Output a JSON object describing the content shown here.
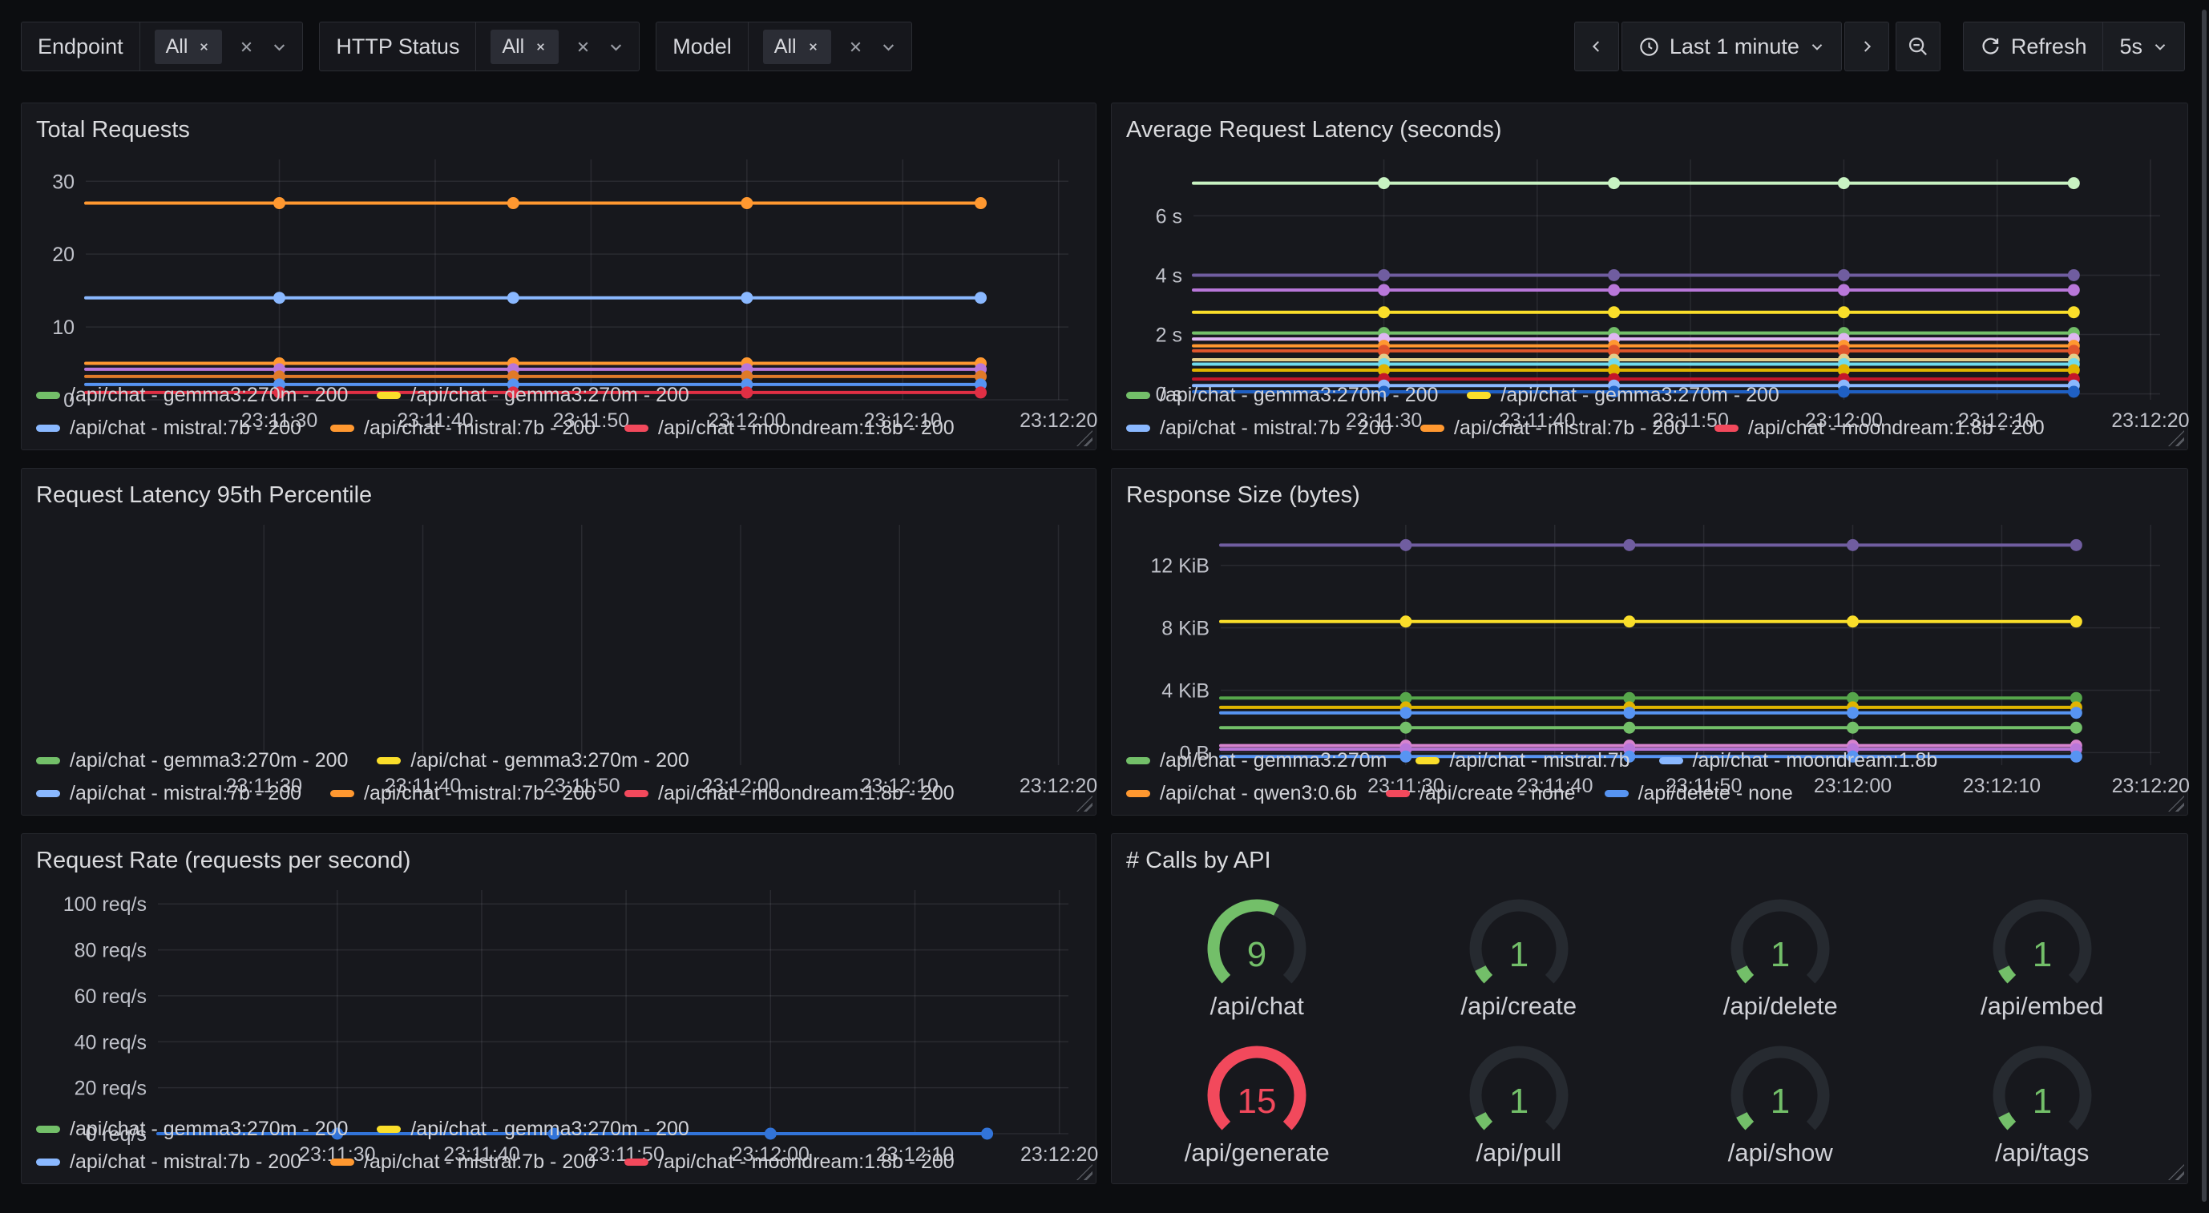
{
  "toolbar": {
    "filters": [
      {
        "label": "Endpoint",
        "selected": "All"
      },
      {
        "label": "HTTP Status",
        "selected": "All"
      },
      {
        "label": "Model",
        "selected": "All"
      }
    ],
    "time_range": "Last 1 minute",
    "refresh_label": "Refresh",
    "interval": "5s"
  },
  "colors": {
    "background": "#0c0d10",
    "panel": "#17181d",
    "grid": "rgba(204,204,220,0.10)",
    "tick_text": "#c0c2ca",
    "green": "#73BF69",
    "red": "#F2495C",
    "gauge_track": "#262a30"
  },
  "panels": [
    {
      "title": "Total Requests",
      "chart": 0,
      "legend": [
        [
          {
            "color": "#73BF69",
            "label": "/api/chat - gemma3:270m - 200"
          },
          {
            "color": "#FADE2A",
            "label": "/api/chat - gemma3:270m - 200"
          }
        ],
        [
          {
            "color": "#8AB8FF",
            "label": "/api/chat - mistral:7b - 200"
          },
          {
            "color": "#FF9830",
            "label": "/api/chat - mistral:7b - 200"
          },
          {
            "color": "#F2495C",
            "label": "/api/chat - moondream:1.8b - 200"
          }
        ]
      ]
    },
    {
      "title": "Average Request Latency (seconds)",
      "chart": 1,
      "legend": [
        [
          {
            "color": "#73BF69",
            "label": "/api/chat - gemma3:270m - 200"
          },
          {
            "color": "#FADE2A",
            "label": "/api/chat - gemma3:270m - 200"
          }
        ],
        [
          {
            "color": "#8AB8FF",
            "label": "/api/chat - mistral:7b - 200"
          },
          {
            "color": "#FF9830",
            "label": "/api/chat - mistral:7b - 200"
          },
          {
            "color": "#F2495C",
            "label": "/api/chat - moondream:1.8b - 200"
          }
        ]
      ]
    },
    {
      "title": "Request Latency 95th Percentile",
      "chart": 2,
      "legend": [
        [
          {
            "color": "#73BF69",
            "label": "/api/chat - gemma3:270m - 200"
          },
          {
            "color": "#FADE2A",
            "label": "/api/chat - gemma3:270m - 200"
          }
        ],
        [
          {
            "color": "#8AB8FF",
            "label": "/api/chat - mistral:7b - 200"
          },
          {
            "color": "#FF9830",
            "label": "/api/chat - mistral:7b - 200"
          },
          {
            "color": "#F2495C",
            "label": "/api/chat - moondream:1.8b - 200"
          }
        ]
      ]
    },
    {
      "title": "Response Size (bytes)",
      "chart": 3,
      "legend": [
        [
          {
            "color": "#73BF69",
            "label": "/api/chat - gemma3:270m"
          },
          {
            "color": "#FADE2A",
            "label": "/api/chat - mistral:7b"
          },
          {
            "color": "#8AB8FF",
            "label": "/api/chat - moondream:1.8b"
          }
        ],
        [
          {
            "color": "#FF9830",
            "label": "/api/chat - qwen3:0.6b"
          },
          {
            "color": "#F2495C",
            "label": "/api/create - none"
          },
          {
            "color": "#5794F2",
            "label": "/api/delete - none"
          }
        ]
      ]
    },
    {
      "title": "Request Rate (requests per second)",
      "chart": 4,
      "legend": [
        [
          {
            "color": "#73BF69",
            "label": "/api/chat - gemma3:270m - 200"
          },
          {
            "color": "#FADE2A",
            "label": "/api/chat - gemma3:270m - 200"
          }
        ],
        [
          {
            "color": "#8AB8FF",
            "label": "/api/chat - mistral:7b - 200"
          },
          {
            "color": "#FF9830",
            "label": "/api/chat - mistral:7b - 200"
          },
          {
            "color": "#F2495C",
            "label": "/api/chat - moondream:1.8b - 200"
          }
        ]
      ]
    },
    {
      "title": "# Calls by API",
      "chart": 5
    }
  ],
  "chart_data": [
    {
      "type": "line",
      "title": "Total Requests",
      "gutter": 62,
      "ylim": [
        0,
        33
      ],
      "yticks": [
        {
          "v": 0,
          "label": "0"
        },
        {
          "v": 10,
          "label": "10"
        },
        {
          "v": 20,
          "label": "20"
        },
        {
          "v": 30,
          "label": "30"
        }
      ],
      "xticks": [
        {
          "f": 0.197,
          "label": "23:11:30"
        },
        {
          "f": 0.3556,
          "label": "23:11:40"
        },
        {
          "f": 0.5142,
          "label": "23:11:50"
        },
        {
          "f": 0.6728,
          "label": "23:12:00"
        },
        {
          "f": 0.8314,
          "label": "23:12:10"
        },
        {
          "f": 0.99,
          "label": "23:12:20"
        }
      ],
      "points_at": [
        "23:11:30",
        "23:11:45",
        "23:12:00",
        "23:12:15"
      ],
      "point_fracs": [
        0.197,
        0.435,
        0.6728,
        0.9107
      ],
      "x_end_frac": 0.9107,
      "series": [
        {
          "y": 27,
          "color": "#FF9830"
        },
        {
          "y": 14,
          "color": "#8AB8FF"
        },
        {
          "y": 5,
          "color": "#FF9830"
        },
        {
          "y": 4.2,
          "color": "#B877D9"
        },
        {
          "y": 3.2,
          "color": "#E07A29"
        },
        {
          "y": 2.1,
          "color": "#5794F2"
        },
        {
          "y": 1.0,
          "color": "#E02F44"
        }
      ]
    },
    {
      "type": "line",
      "title": "Average Request Latency (seconds)",
      "gutter": 84,
      "ylim": [
        -0.2,
        7.9
      ],
      "yticks": [
        {
          "v": 0,
          "label": "0 s"
        },
        {
          "v": 2,
          "label": "2 s"
        },
        {
          "v": 4,
          "label": "4 s"
        },
        {
          "v": 6,
          "label": "6 s"
        }
      ],
      "xticks": [
        {
          "f": 0.197,
          "label": "23:11:30"
        },
        {
          "f": 0.3556,
          "label": "23:11:40"
        },
        {
          "f": 0.5142,
          "label": "23:11:50"
        },
        {
          "f": 0.6728,
          "label": "23:12:00"
        },
        {
          "f": 0.8314,
          "label": "23:12:10"
        },
        {
          "f": 0.99,
          "label": "23:12:20"
        }
      ],
      "points_at": [
        "23:11:30",
        "23:11:45",
        "23:12:00",
        "23:12:15"
      ],
      "point_fracs": [
        0.197,
        0.435,
        0.6728,
        0.9107
      ],
      "x_end_frac": 0.9107,
      "series": [
        {
          "y": 7.1,
          "color": "#C8F2C2"
        },
        {
          "y": 4.0,
          "color": "#705DA0"
        },
        {
          "y": 3.5,
          "color": "#B877D9"
        },
        {
          "y": 2.75,
          "color": "#FADE2A"
        },
        {
          "y": 2.05,
          "color": "#73BF69"
        },
        {
          "y": 1.85,
          "color": "#DEB6F2"
        },
        {
          "y": 1.62,
          "color": "#FF9830"
        },
        {
          "y": 1.45,
          "color": "#E0562D"
        },
        {
          "y": 1.15,
          "color": "#E3CE8B"
        },
        {
          "y": 1.0,
          "color": "#70DBED"
        },
        {
          "y": 0.8,
          "color": "#E0B400"
        },
        {
          "y": 0.5,
          "color": "#C4162A"
        },
        {
          "y": 0.28,
          "color": "#8AB8FF"
        },
        {
          "y": 0.07,
          "color": "#1F60C4"
        }
      ]
    },
    {
      "type": "line",
      "title": "Request Latency 95th Percentile",
      "gutter": 38,
      "ylim": [
        0,
        1
      ],
      "yticks": [],
      "xticks": [
        {
          "f": 0.197,
          "label": "23:11:30"
        },
        {
          "f": 0.3556,
          "label": "23:11:40"
        },
        {
          "f": 0.5142,
          "label": "23:11:50"
        },
        {
          "f": 0.6728,
          "label": "23:12:00"
        },
        {
          "f": 0.8314,
          "label": "23:12:10"
        },
        {
          "f": 0.99,
          "label": "23:12:20"
        }
      ],
      "points_at": [],
      "point_fracs": [],
      "x_end_frac": 0.9107,
      "series": []
    },
    {
      "type": "line",
      "title": "Response Size (bytes)",
      "gutter": 118,
      "ylim": [
        -0.8,
        14.6
      ],
      "yticks": [
        {
          "v": 0,
          "label": "0 B"
        },
        {
          "v": 4,
          "label": "4 KiB"
        },
        {
          "v": 8,
          "label": "8 KiB"
        },
        {
          "v": 12,
          "label": "12 KiB"
        }
      ],
      "xticks": [
        {
          "f": 0.197,
          "label": "23:11:30"
        },
        {
          "f": 0.3556,
          "label": "23:11:40"
        },
        {
          "f": 0.5142,
          "label": "23:11:50"
        },
        {
          "f": 0.6728,
          "label": "23:12:00"
        },
        {
          "f": 0.8314,
          "label": "23:12:10"
        },
        {
          "f": 0.99,
          "label": "23:12:20"
        }
      ],
      "points_at": [
        "23:11:30",
        "23:11:45",
        "23:12:00",
        "23:12:15"
      ],
      "point_fracs": [
        0.197,
        0.435,
        0.6728,
        0.9107
      ],
      "x_end_frac": 0.9107,
      "series": [
        {
          "y": 13.3,
          "color": "#705DA0"
        },
        {
          "y": 8.4,
          "color": "#FADE2A"
        },
        {
          "y": 3.5,
          "color": "#56A64B"
        },
        {
          "y": 2.9,
          "color": "#E0B400"
        },
        {
          "y": 2.55,
          "color": "#5794F2"
        },
        {
          "y": 1.6,
          "color": "#73BF69"
        },
        {
          "y": 0.45,
          "color": "#D683CE"
        },
        {
          "y": 0.22,
          "color": "#B877D9"
        },
        {
          "y": -0.25,
          "color": "#5794F2"
        }
      ]
    },
    {
      "type": "line",
      "title": "Request Rate (requests per second)",
      "gutter": 152,
      "ylim": [
        0,
        106
      ],
      "yticks": [
        {
          "v": 0,
          "label": "0 req/s"
        },
        {
          "v": 20,
          "label": "20 req/s"
        },
        {
          "v": 40,
          "label": "40 req/s"
        },
        {
          "v": 60,
          "label": "60 req/s"
        },
        {
          "v": 80,
          "label": "80 req/s"
        },
        {
          "v": 100,
          "label": "100 req/s"
        }
      ],
      "xticks": [
        {
          "f": 0.197,
          "label": "23:11:30"
        },
        {
          "f": 0.3556,
          "label": "23:11:40"
        },
        {
          "f": 0.5142,
          "label": "23:11:50"
        },
        {
          "f": 0.6728,
          "label": "23:12:00"
        },
        {
          "f": 0.8314,
          "label": "23:12:10"
        },
        {
          "f": 0.99,
          "label": "23:12:20"
        }
      ],
      "points_at": [
        "23:11:30",
        "23:11:45",
        "23:12:00",
        "23:12:15"
      ],
      "point_fracs": [
        0.197,
        0.435,
        0.6728,
        0.9107
      ],
      "x_end_frac": 0.9107,
      "series": [
        {
          "y": 0,
          "color": "#3274D9"
        }
      ]
    },
    {
      "type": "gauge",
      "title": "# Calls by API",
      "min": 0,
      "max": 15,
      "items": [
        {
          "label": "/api/chat",
          "value": 9,
          "color": "#73BF69"
        },
        {
          "label": "/api/create",
          "value": 1,
          "color": "#73BF69"
        },
        {
          "label": "/api/delete",
          "value": 1,
          "color": "#73BF69"
        },
        {
          "label": "/api/embed",
          "value": 1,
          "color": "#73BF69"
        },
        {
          "label": "/api/generate",
          "value": 15,
          "color": "#F2495C"
        },
        {
          "label": "/api/pull",
          "value": 1,
          "color": "#73BF69"
        },
        {
          "label": "/api/show",
          "value": 1,
          "color": "#73BF69"
        },
        {
          "label": "/api/tags",
          "value": 1,
          "color": "#73BF69"
        }
      ]
    }
  ]
}
